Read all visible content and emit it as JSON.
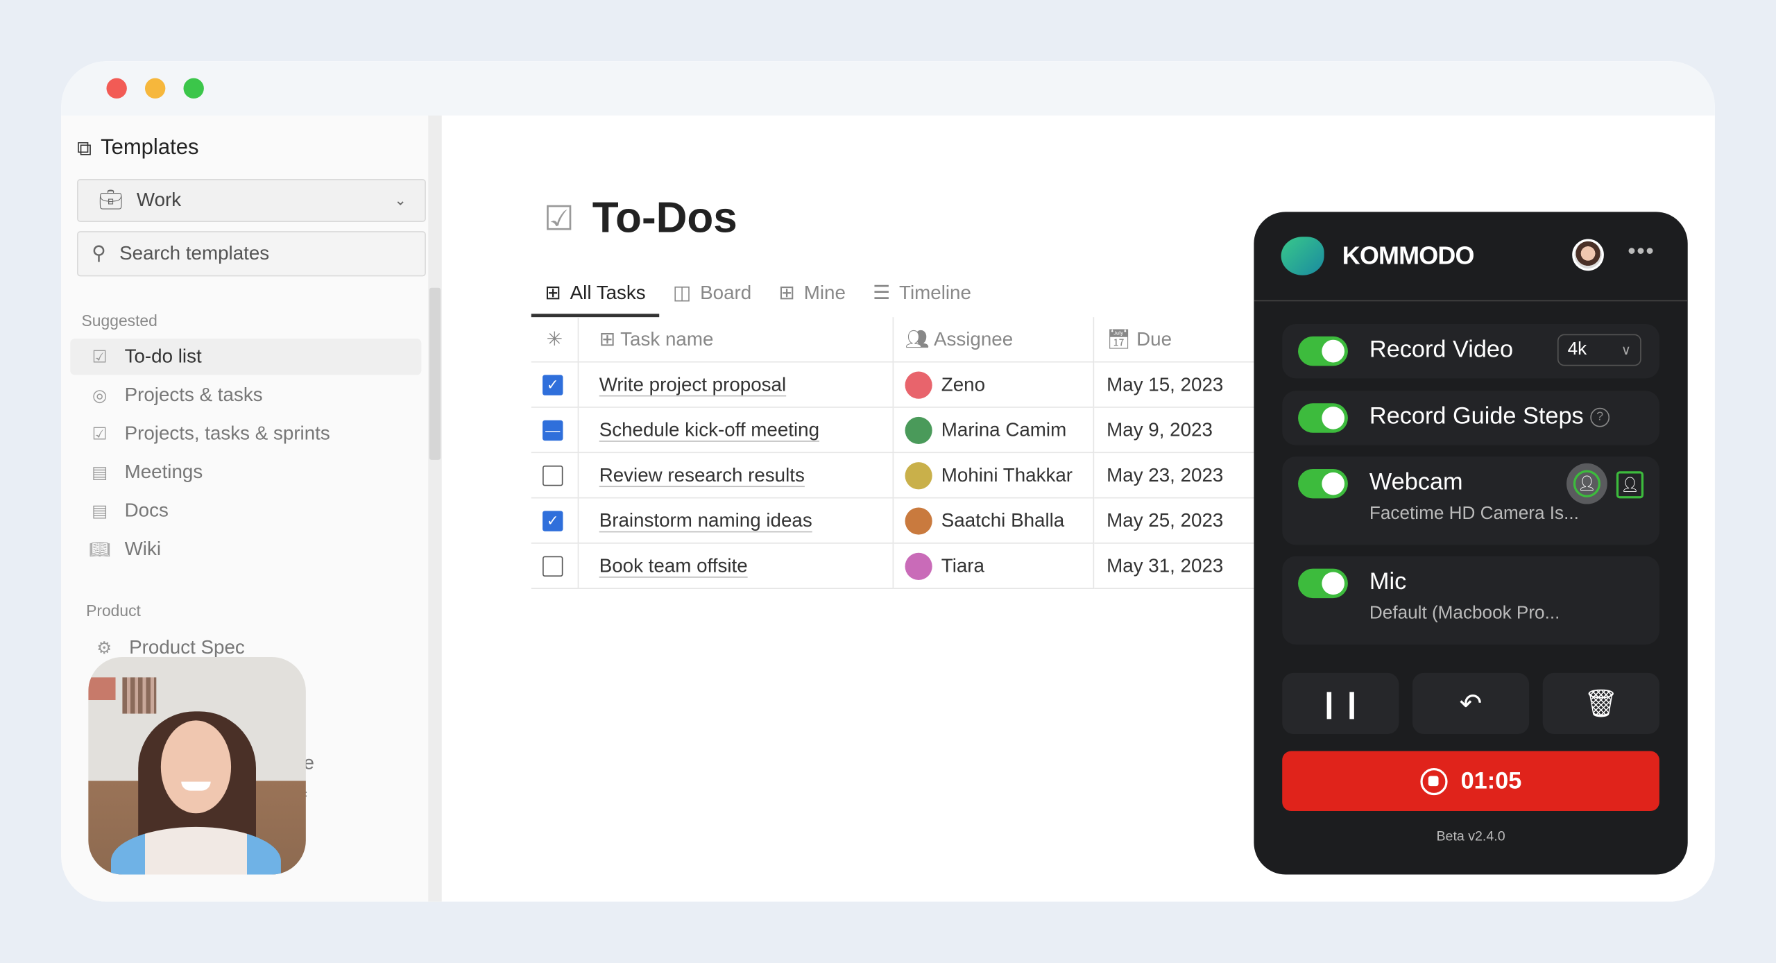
{
  "sidebar": {
    "title": "Templates",
    "workspace": "Work",
    "search_placeholder": "Search templates",
    "sections": [
      {
        "label": "Suggested",
        "items": [
          {
            "label": "To-do list",
            "icon": "checkbox-icon",
            "active": true
          },
          {
            "label": "Projects & tasks",
            "icon": "target-icon"
          },
          {
            "label": "Projects, tasks & sprints",
            "icon": "checkbox-icon"
          },
          {
            "label": "Meetings",
            "icon": "document-icon"
          },
          {
            "label": "Docs",
            "icon": "document-icon"
          },
          {
            "label": "Wiki",
            "icon": "book-icon"
          }
        ]
      },
      {
        "label": "Product",
        "items": [
          {
            "label": "Product Spec",
            "icon": "gear-icon"
          }
        ]
      }
    ],
    "partial_items": [
      "ase",
      "f"
    ]
  },
  "page": {
    "title": "To-Dos",
    "tabs": [
      {
        "label": "All Tasks",
        "active": true
      },
      {
        "label": "Board"
      },
      {
        "label": "Mine"
      },
      {
        "label": "Timeline"
      }
    ],
    "columns": [
      "Task name",
      "Assignee",
      "Due"
    ],
    "rows": [
      {
        "state": "checked",
        "task": "Write project proposal",
        "assignee": "Zeno",
        "due": "May 15, 2023",
        "avatar": "#e8646c"
      },
      {
        "state": "partial",
        "task": "Schedule kick-off meeting",
        "assignee": "Marina Camim",
        "due": "May 9, 2023",
        "avatar": "#4a9a5a"
      },
      {
        "state": "unchecked",
        "task": "Review research results",
        "assignee": "Mohini Thakkar",
        "due": "May 23, 2023",
        "avatar": "#c9b04a"
      },
      {
        "state": "checked",
        "task": "Brainstorm naming ideas",
        "assignee": "Saatchi Bhalla",
        "due": "May 25, 2023",
        "avatar": "#c97a3e"
      },
      {
        "state": "unchecked",
        "task": "Book team offsite",
        "assignee": "Tiara",
        "due": "May 31, 2023",
        "avatar": "#c96bb8"
      }
    ]
  },
  "kommodo": {
    "brand": "KOMMODO",
    "record_video": {
      "label": "Record Video",
      "on": true,
      "quality": "4k"
    },
    "record_guide": {
      "label": "Record Guide Steps",
      "on": true
    },
    "webcam": {
      "label": "Webcam",
      "on": true,
      "device": "Facetime HD Camera Is..."
    },
    "mic": {
      "label": "Mic",
      "on": true,
      "device": "Default (Macbook Pro..."
    },
    "timer": "01:05",
    "version": "Beta v2.4.0",
    "colors": {
      "accent": "#3dbb3d",
      "record": "#e0231b",
      "panel": "#1c1d1f"
    }
  }
}
